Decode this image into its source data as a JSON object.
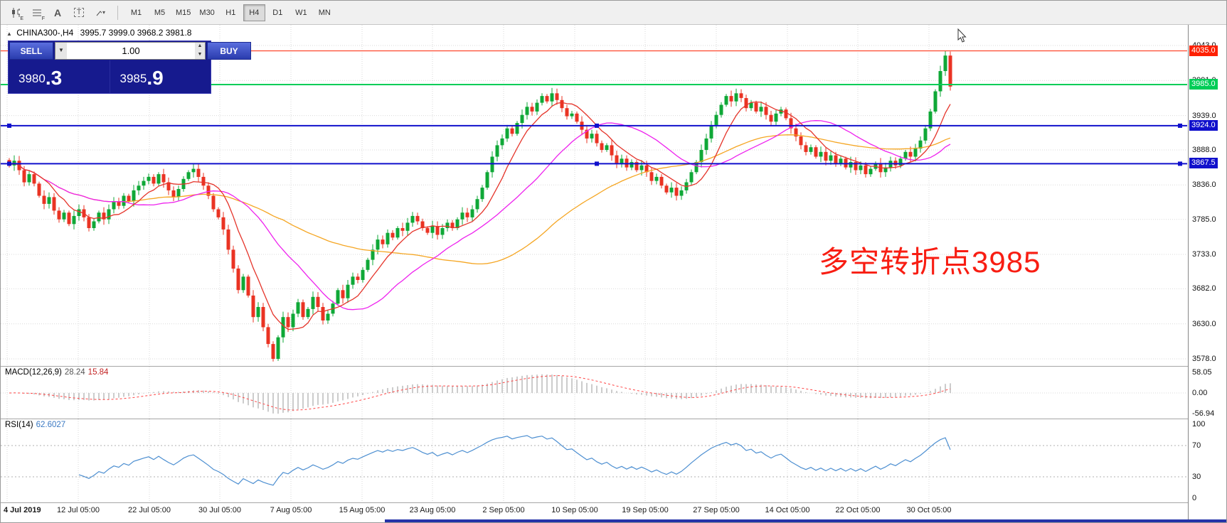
{
  "toolbar": {
    "icons": [
      {
        "name": "chart-style-icon",
        "badge": "E"
      },
      {
        "name": "indicator-list-icon",
        "badge": "F"
      },
      {
        "name": "text-annotation-icon",
        "glyph": "A"
      },
      {
        "name": "text-label-icon",
        "glyph": "T"
      },
      {
        "name": "drawing-tools-icon",
        "caret": "▾"
      }
    ],
    "timeframes": [
      "M1",
      "M5",
      "M15",
      "M30",
      "H1",
      "H4",
      "D1",
      "W1",
      "MN"
    ],
    "active_timeframe": "H4"
  },
  "chart": {
    "collapse_arrow": "▲",
    "symbol_period": "CHINA300-,H4",
    "ohlc_text": "3995.7 3999.0 3968.2 3981.8",
    "ohlc": {
      "open": 3995.7,
      "high": 3999.0,
      "low": 3968.2,
      "close": 3981.8
    },
    "annotation": "多空转折点3985"
  },
  "trade_panel": {
    "sell_label": "SELL",
    "buy_label": "BUY",
    "volume": "1.00",
    "bid": "3980.3",
    "ask": "3985.9",
    "bid_base": "3980",
    "bid_big": ".3",
    "ask_base": "3985",
    "ask_big": ".9"
  },
  "price_axis": {
    "ticks": [
      "4043.0",
      "3991.0",
      "3939.0",
      "3888.0",
      "3836.0",
      "3785.0",
      "3733.0",
      "3682.0",
      "3630.0",
      "3578.0"
    ]
  },
  "levels": [
    {
      "label": "4035.0",
      "value": 4035.0,
      "color": "#fe2000",
      "width": 1,
      "handles": false
    },
    {
      "label": "3985.0",
      "value": 3985.0,
      "color": "#00cd58",
      "width": 2,
      "handles": false
    },
    {
      "label": "3924.0",
      "value": 3924.0,
      "color": "#1010cc",
      "width": 2,
      "handles": true
    },
    {
      "label": "3867.5",
      "value": 3867.5,
      "color": "#1010cc",
      "width": 2,
      "handles": true
    }
  ],
  "macd_panel": {
    "label": "MACD(12,26,9)",
    "value_main": "28.24",
    "value_signal": "15.84",
    "axis_labels": [
      "58.05",
      "0.00",
      "-56.94"
    ]
  },
  "rsi_panel": {
    "label": "RSI(14)",
    "value": "62.6027",
    "axis_labels": [
      "100",
      "70",
      "30",
      "0"
    ]
  },
  "time_axis": {
    "labels": [
      "4 Jul 2019",
      "12 Jul 05:00",
      "22 Jul 05:00",
      "30 Jul 05:00",
      "7 Aug 05:00",
      "15 Aug 05:00",
      "23 Aug 05:00",
      "2 Sep 05:00",
      "10 Sep 05:00",
      "19 Sep 05:00",
      "27 Sep 05:00",
      "14 Oct 05:00",
      "22 Oct 05:00",
      "30 Oct 05:00"
    ]
  },
  "chart_data": {
    "type": "candlestick",
    "symbol": "CHINA300-",
    "timeframe": "H4",
    "price_range": [
      3578.0,
      4043.0
    ],
    "key_levels": [
      4035.0,
      3985.0,
      3924.0,
      3867.5
    ],
    "closes": [
      3865,
      3872,
      3858,
      3840,
      3852,
      3838,
      3820,
      3808,
      3818,
      3798,
      3785,
      3795,
      3778,
      3790,
      3800,
      3788,
      3772,
      3782,
      3795,
      3785,
      3800,
      3812,
      3805,
      3820,
      3812,
      3828,
      3835,
      3842,
      3848,
      3838,
      3852,
      3840,
      3828,
      3818,
      3830,
      3845,
      3855,
      3860,
      3848,
      3835,
      3820,
      3800,
      3788,
      3770,
      3740,
      3712,
      3680,
      3700,
      3672,
      3640,
      3655,
      3625,
      3600,
      3578,
      3610,
      3640,
      3625,
      3645,
      3662,
      3640,
      3652,
      3670,
      3655,
      3635,
      3645,
      3660,
      3680,
      3668,
      3688,
      3700,
      3695,
      3710,
      3725,
      3740,
      3755,
      3748,
      3765,
      3758,
      3772,
      3768,
      3780,
      3790,
      3782,
      3772,
      3765,
      3775,
      3762,
      3772,
      3780,
      3772,
      3785,
      3795,
      3788,
      3800,
      3815,
      3832,
      3855,
      3878,
      3895,
      3905,
      3920,
      3912,
      3928,
      3940,
      3952,
      3945,
      3958,
      3968,
      3960,
      3972,
      3962,
      3950,
      3938,
      3942,
      3930,
      3918,
      3905,
      3912,
      3898,
      3888,
      3895,
      3880,
      3868,
      3875,
      3862,
      3870,
      3858,
      3865,
      3855,
      3842,
      3848,
      3835,
      3825,
      3832,
      3820,
      3828,
      3840,
      3855,
      3870,
      3888,
      3905,
      3925,
      3940,
      3955,
      3968,
      3960,
      3972,
      3965,
      3950,
      3958,
      3945,
      3952,
      3940,
      3930,
      3942,
      3948,
      3935,
      3920,
      3908,
      3895,
      3885,
      3892,
      3878,
      3885,
      3872,
      3880,
      3868,
      3875,
      3862,
      3870,
      3858,
      3865,
      3852,
      3860,
      3868,
      3855,
      3862,
      3872,
      3865,
      3875,
      3885,
      3878,
      3890,
      3902,
      3920,
      3945,
      3975,
      4005,
      4028,
      3982
    ],
    "bull_color": "#0fa837",
    "bear_color": "#ea3323",
    "moving_averages": [
      {
        "name": "fast",
        "window": 8,
        "color": "#e5342a"
      },
      {
        "name": "medium",
        "window": 24,
        "color": "#ee22ee"
      },
      {
        "name": "slow",
        "window": 56,
        "color": "#f5a623"
      }
    ],
    "macd": {
      "fast": 12,
      "slow": 26,
      "signal": 9,
      "histogram_color": "#bbbbbb",
      "signal_color": "#ff4444"
    },
    "rsi": {
      "period": 14,
      "color": "#4d8fd1",
      "levels": [
        70,
        30
      ]
    }
  },
  "colors": {
    "grid": "#d9d9d9",
    "toolbar_bg": "#f0f0f0",
    "trade_panel_bg": "#161a8e"
  }
}
